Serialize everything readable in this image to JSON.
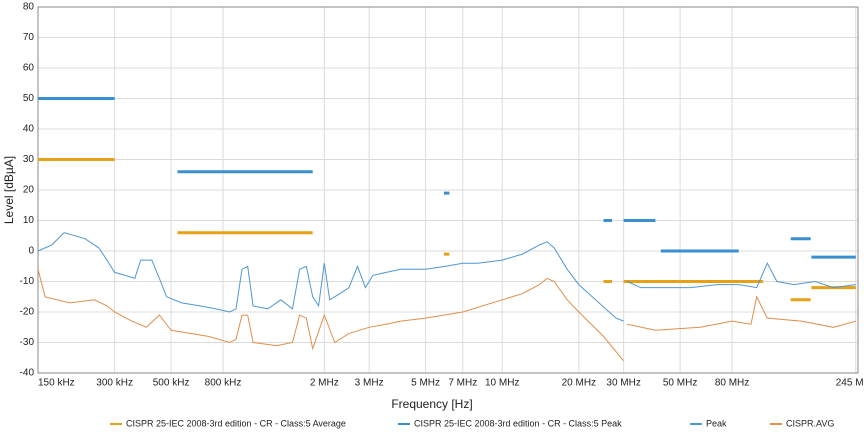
{
  "chart_data": {
    "type": "line",
    "xlabel": "Frequency [Hz]",
    "ylabel": "Level [dBµA]",
    "xlog": true,
    "grid": true,
    "legend": "bottom",
    "xlim": [
      150000,
      250000000
    ],
    "xticks": [
      {
        "value": 150000,
        "label": "150 kHz"
      },
      {
        "value": 300000,
        "label": "300 kHz"
      },
      {
        "value": 500000,
        "label": "500 kHz"
      },
      {
        "value": 800000,
        "label": "800 kHz"
      },
      {
        "value": 2000000,
        "label": "2 MHz"
      },
      {
        "value": 3000000,
        "label": "3 MHz"
      },
      {
        "value": 5000000,
        "label": "5 MHz"
      },
      {
        "value": 7000000,
        "label": "7 MHz"
      },
      {
        "value": 10000000,
        "label": "10 MHz"
      },
      {
        "value": 20000000,
        "label": "20 MHz"
      },
      {
        "value": 30000000,
        "label": "30 MHz"
      },
      {
        "value": 50000000,
        "label": "50 MHz"
      },
      {
        "value": 80000000,
        "label": "80 MHz"
      },
      {
        "value": 245000000,
        "label": "245 MHz"
      }
    ],
    "ylim": [
      -40,
      80
    ],
    "yticks": [
      -40,
      -30,
      -20,
      -10,
      0,
      10,
      20,
      30,
      40,
      50,
      60,
      70,
      80
    ],
    "series": [
      {
        "name": "CISPR 25-IEC 2008-3rd edition - CR - Class:5 Average",
        "color": "#e6a117",
        "width": 3,
        "x": [
          150000,
          300000,
          310000,
          530000,
          1800000,
          1900000,
          5900000,
          6200000,
          6300000,
          25000000,
          27000000,
          28000000,
          30000000,
          106000000,
          110000000,
          136000000,
          163000000,
          163500000,
          164000000,
          245000000
        ],
        "values": [
          30,
          30,
          null,
          6,
          6,
          null,
          -1,
          -1,
          null,
          -10,
          -10,
          null,
          -10,
          -10,
          null,
          -16,
          -16,
          null,
          -12,
          -12
        ]
      },
      {
        "name": "CISPR 25-IEC 2008-3rd edition - CR - Class:5 Peak",
        "color": "#3a8fd0",
        "width": 3,
        "x": [
          150000,
          300000,
          310000,
          530000,
          1800000,
          1900000,
          5900000,
          6200000,
          6300000,
          25000000,
          27000000,
          28000000,
          30000000,
          40000000,
          41000000,
          42000000,
          85000000,
          90000000,
          136000000,
          163000000,
          163500000,
          164000000,
          245000000
        ],
        "values": [
          50,
          50,
          null,
          26,
          26,
          null,
          19,
          19,
          null,
          10,
          10,
          null,
          10,
          10,
          null,
          0,
          0,
          null,
          4,
          4,
          null,
          -2,
          -2
        ]
      },
      {
        "name": "Peak",
        "color": "#4f97d1",
        "width": 1,
        "x": [
          150000,
          170000,
          190000,
          210000,
          230000,
          260000,
          280000,
          300000,
          330000,
          360000,
          380000,
          420000,
          450000,
          480000,
          550000,
          650000,
          750000,
          850000,
          900000,
          950000,
          1000000,
          1050000,
          1200000,
          1350000,
          1500000,
          1600000,
          1700000,
          1800000,
          1900000,
          2000000,
          2100000,
          2300000,
          2500000,
          2700000,
          2900000,
          3100000,
          3500000,
          4000000,
          5000000,
          6000000,
          7000000,
          8000000,
          10000000,
          12000000,
          14000000,
          15000000,
          16000000,
          18000000,
          20000000,
          24000000,
          28000000,
          30000000,
          30500000,
          31000000,
          35000000,
          45000000,
          55000000,
          70000000,
          85000000,
          100000000,
          110000000,
          120000000,
          140000000,
          170000000,
          200000000,
          245000000
        ],
        "values": [
          0,
          2,
          6,
          5,
          4,
          1,
          -3,
          -7,
          -8,
          -9,
          -3,
          -3,
          -9,
          -15,
          -17,
          -18,
          -19,
          -20,
          -19,
          -6,
          -5,
          -18,
          -19,
          -16,
          -19,
          -6,
          -5,
          -15,
          -18,
          -4,
          -16,
          -14,
          -12,
          -5,
          -12,
          -8,
          -7,
          -6,
          -6,
          -5,
          -4,
          -4,
          -3,
          -1,
          2,
          3,
          1,
          -6,
          -11,
          -17,
          -22,
          -23,
          null,
          -10,
          -12,
          -12,
          -12,
          -11,
          -11,
          -12,
          -4,
          -10,
          -11,
          -10,
          -12,
          -11
        ]
      },
      {
        "name": "CISPR.AVG",
        "color": "#df8f4c",
        "width": 1,
        "x": [
          150000,
          160000,
          200000,
          250000,
          280000,
          300000,
          350000,
          400000,
          450000,
          500000,
          700000,
          850000,
          900000,
          950000,
          1000000,
          1050000,
          1300000,
          1500000,
          1600000,
          1700000,
          1800000,
          2000000,
          2200000,
          2500000,
          3000000,
          3500000,
          4000000,
          5000000,
          7000000,
          10000000,
          12000000,
          14000000,
          15000000,
          16000000,
          18000000,
          20000000,
          25000000,
          30000000,
          30500000,
          31000000,
          40000000,
          60000000,
          80000000,
          95000000,
          100000000,
          110000000,
          150000000,
          200000000,
          245000000
        ],
        "values": [
          -6,
          -15,
          -17,
          -16,
          -18,
          -20,
          -23,
          -25,
          -21,
          -26,
          -28,
          -30,
          -29,
          -21,
          -21,
          -30,
          -31,
          -30,
          -21,
          -22,
          -32,
          -21,
          -30,
          -27,
          -25,
          -24,
          -23,
          -22,
          -20,
          -16,
          -14,
          -11,
          -9,
          -10,
          -16,
          -20,
          -28,
          -36,
          null,
          -24,
          -26,
          -25,
          -23,
          -24,
          -15,
          -22,
          -23,
          -25,
          -23
        ]
      }
    ]
  }
}
